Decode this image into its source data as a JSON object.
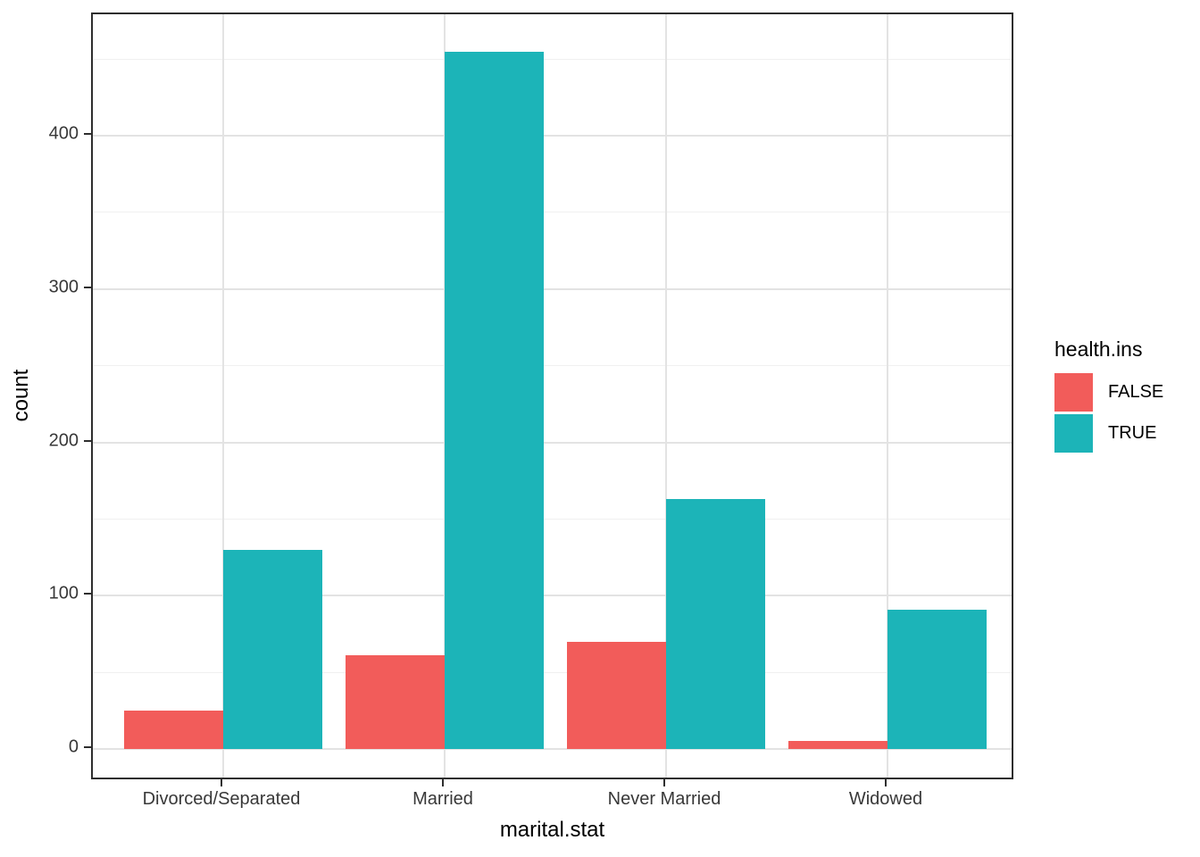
{
  "chart_data": {
    "type": "bar",
    "subtype": "dodged-vertical-ggplot",
    "title": "",
    "xlabel": "marital.stat",
    "ylabel": "count",
    "categories": [
      "Divorced/Separated",
      "Married",
      "Never Married",
      "Widowed"
    ],
    "series": [
      {
        "name": "FALSE",
        "color": "#f25c5a",
        "values": [
          25,
          61,
          70,
          5
        ]
      },
      {
        "name": "TRUE",
        "color": "#1cb4b8",
        "values": [
          130,
          455,
          163,
          91
        ]
      }
    ],
    "ylim": [
      0,
      478
    ],
    "y_major_ticks": [
      0,
      100,
      200,
      300,
      400
    ],
    "y_tick_labels": [
      "0",
      "100",
      "200",
      "300",
      "400"
    ],
    "y_minor_gridlines": [
      50,
      150,
      250,
      350,
      450
    ],
    "grid": "major+minor horizontal, major vertical at category centers",
    "legend_position": "right-middle",
    "legend_title": "health.ins",
    "legend_entries": [
      {
        "label": "FALSE",
        "color": "#f25c5a"
      },
      {
        "label": "TRUE",
        "color": "#1cb4b8"
      }
    ],
    "colors": {
      "panel_border": "#2e2e2e",
      "grid_major": "#e3e3e3",
      "grid_minor": "#f0f0f0",
      "tick_text": "#383838",
      "title_text": "#000000",
      "background": "#ffffff"
    }
  }
}
